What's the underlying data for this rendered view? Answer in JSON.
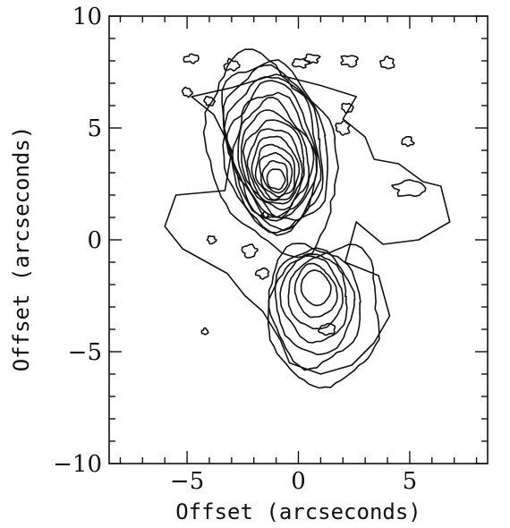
{
  "chart_data": {
    "type": "contour",
    "title": "",
    "xlabel": "Offset (arcseconds)",
    "ylabel": "Offset (arcseconds)",
    "xlim": [
      -8.5,
      8.5
    ],
    "ylim": [
      -10,
      10
    ],
    "x_major_ticks": [
      -5,
      0,
      5
    ],
    "y_major_ticks": [
      -10,
      -5,
      0,
      5,
      10
    ],
    "x_minor_step": 1,
    "y_minor_step": 1,
    "grid": false,
    "sources": [
      {
        "peak_x": -1.0,
        "peak_y": 2.6,
        "contour_levels": 14
      },
      {
        "peak_x": 0.8,
        "peak_y": -2.0,
        "contour_levels": 6
      }
    ]
  }
}
